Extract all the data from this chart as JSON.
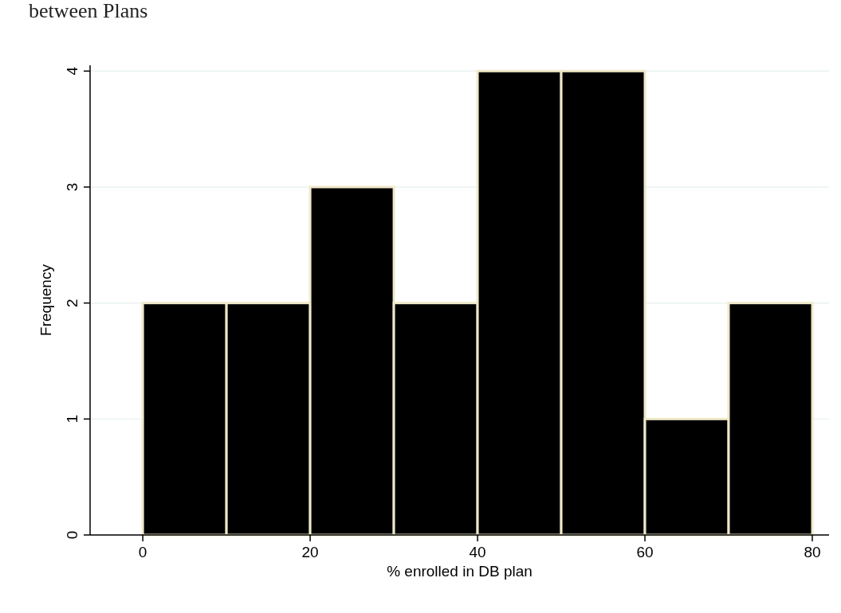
{
  "chart_data": {
    "type": "histogram",
    "title": "between Plans",
    "xlabel": "% enrolled in DB plan",
    "ylabel": "Frequency",
    "bins": [
      0,
      10,
      20,
      30,
      40,
      50,
      60,
      70,
      80
    ],
    "values": [
      2,
      2,
      3,
      2,
      4,
      4,
      1,
      2
    ],
    "color": "#000000",
    "xlim": [
      -6.3,
      82
    ],
    "xticks": [
      0,
      20,
      40,
      60,
      80
    ],
    "ylim": [
      0,
      4.05
    ],
    "yticks": [
      0,
      1,
      2,
      3,
      4
    ],
    "grid": "y"
  }
}
